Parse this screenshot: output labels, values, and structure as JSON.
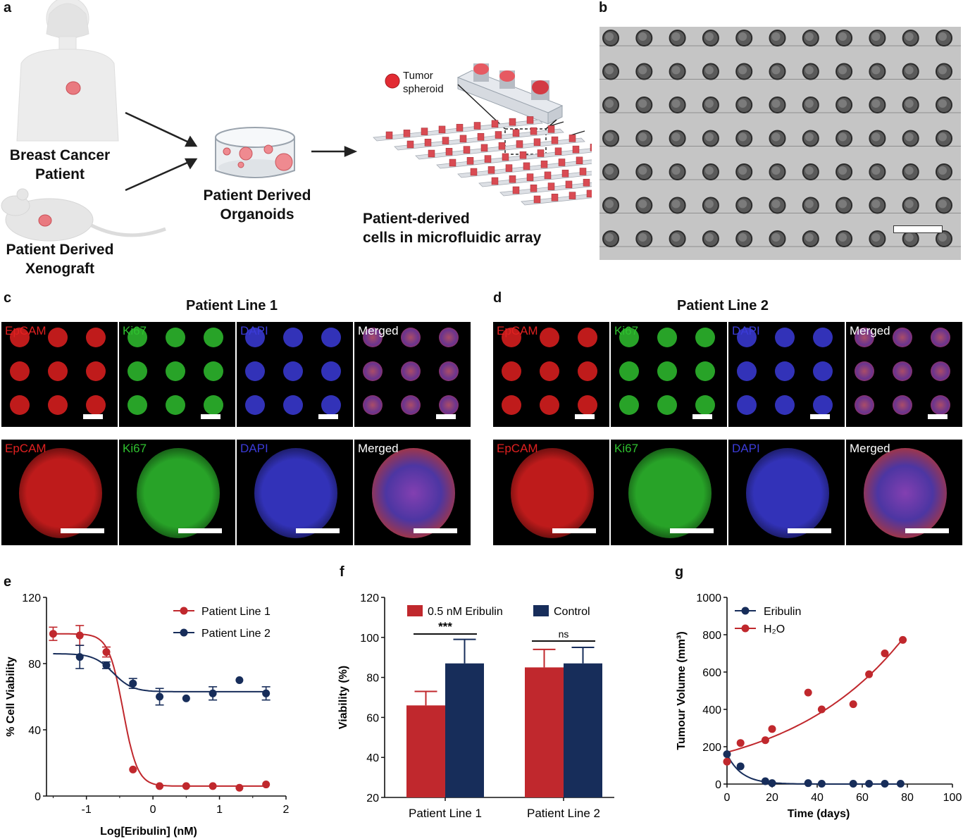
{
  "panels": {
    "a": {
      "label": "a",
      "patient_label": [
        "Breast Cancer",
        "Patient"
      ],
      "xenograft_label": [
        "Patient Derived",
        "Xenograft"
      ],
      "organoid_label": [
        "Patient Derived",
        "Organoids"
      ],
      "array_label": [
        "Patient-derived",
        "cells in microfluidic array"
      ],
      "tumor_legend": [
        "Tumor",
        "spheroid"
      ]
    },
    "b": {
      "label": "b"
    },
    "c": {
      "label": "c",
      "title": "Patient Line 1"
    },
    "d": {
      "label": "d",
      "title": "Patient Line 2"
    },
    "e": {
      "label": "e"
    },
    "f": {
      "label": "f"
    },
    "g": {
      "label": "g"
    }
  },
  "channels": [
    {
      "name": "EpCAM",
      "color": "#e02020"
    },
    {
      "name": "Ki67",
      "color": "#2fc02f"
    },
    {
      "name": "DAPI",
      "color": "#3b3bd8"
    },
    {
      "name": "Merged",
      "color": "#ffffff"
    }
  ],
  "chart_data": [
    {
      "panel": "e",
      "type": "scatter",
      "xlabel": "Log[Eribulin] (nM)",
      "ylabel": "% Cell Viability",
      "xlim": [
        -1.6,
        2
      ],
      "ylim": [
        0,
        120
      ],
      "xticks": [
        "-1",
        "0",
        "1",
        "2"
      ],
      "yticks": [
        "0",
        "40",
        "80",
        "120"
      ],
      "legend_position": "top-right",
      "series": [
        {
          "name": "Patient Line 1",
          "color": "#c0282d",
          "x": [
            -1.5,
            -1.1,
            -0.7,
            -0.3,
            0.1,
            0.5,
            0.9,
            1.3,
            1.7
          ],
          "y": [
            98,
            97,
            87,
            16,
            6,
            6,
            6,
            5,
            7
          ],
          "err": [
            4,
            6,
            3,
            0,
            0,
            0,
            0,
            0,
            0
          ],
          "fit": {
            "top": 98,
            "bottom": 6,
            "logEC50": -0.45,
            "hill": -4
          }
        },
        {
          "name": "Patient Line 2",
          "color": "#172d5a",
          "x": [
            -1.1,
            -0.7,
            -0.3,
            0.1,
            0.5,
            0.9,
            1.3,
            1.7
          ],
          "y": [
            84,
            79,
            68,
            60,
            59,
            62,
            70,
            62
          ],
          "err": [
            7,
            2,
            3,
            5,
            0,
            4,
            0,
            4
          ],
          "fit": {
            "top": 86,
            "bottom": 63,
            "logEC50": -0.6,
            "hill": -3
          }
        }
      ]
    },
    {
      "panel": "f",
      "type": "bar",
      "ylabel": "Viability (%)",
      "ylim": [
        20,
        120
      ],
      "yticks": [
        "20",
        "40",
        "60",
        "80",
        "100",
        "120"
      ],
      "categories": [
        "Patient Line 1",
        "Patient Line 2"
      ],
      "legend_position": "top",
      "series": [
        {
          "name": "0.5 nM Eribulin",
          "color": "#c0282d",
          "values": [
            66,
            85
          ],
          "err": [
            7,
            9
          ]
        },
        {
          "name": "Control",
          "color": "#172d5a",
          "values": [
            87,
            87
          ],
          "err": [
            12,
            8
          ]
        }
      ],
      "significance": [
        "***",
        "ns"
      ]
    },
    {
      "panel": "g",
      "type": "scatter",
      "xlabel": "Time (days)",
      "ylabel": "Tumour Volume (mm³)",
      "xlim": [
        0,
        100
      ],
      "ylim": [
        0,
        1000
      ],
      "xticks": [
        "0",
        "20",
        "40",
        "60",
        "80",
        "100"
      ],
      "yticks": [
        "0",
        "200",
        "400",
        "600",
        "800",
        "1000"
      ],
      "legend_position": "top-left",
      "series": [
        {
          "name": "Eribulin",
          "color": "#172d5a",
          "x": [
            0,
            6,
            17,
            20,
            36,
            42,
            56,
            63,
            70,
            77
          ],
          "y": [
            160,
            95,
            15,
            5,
            5,
            2,
            2,
            2,
            2,
            2
          ]
        },
        {
          "name": "H₂O",
          "color": "#c0282d",
          "x": [
            0,
            6,
            17,
            20,
            36,
            42,
            56,
            63,
            70,
            78
          ],
          "y": [
            120,
            220,
            235,
            295,
            490,
            400,
            428,
            588,
            700,
            772
          ]
        }
      ]
    }
  ]
}
